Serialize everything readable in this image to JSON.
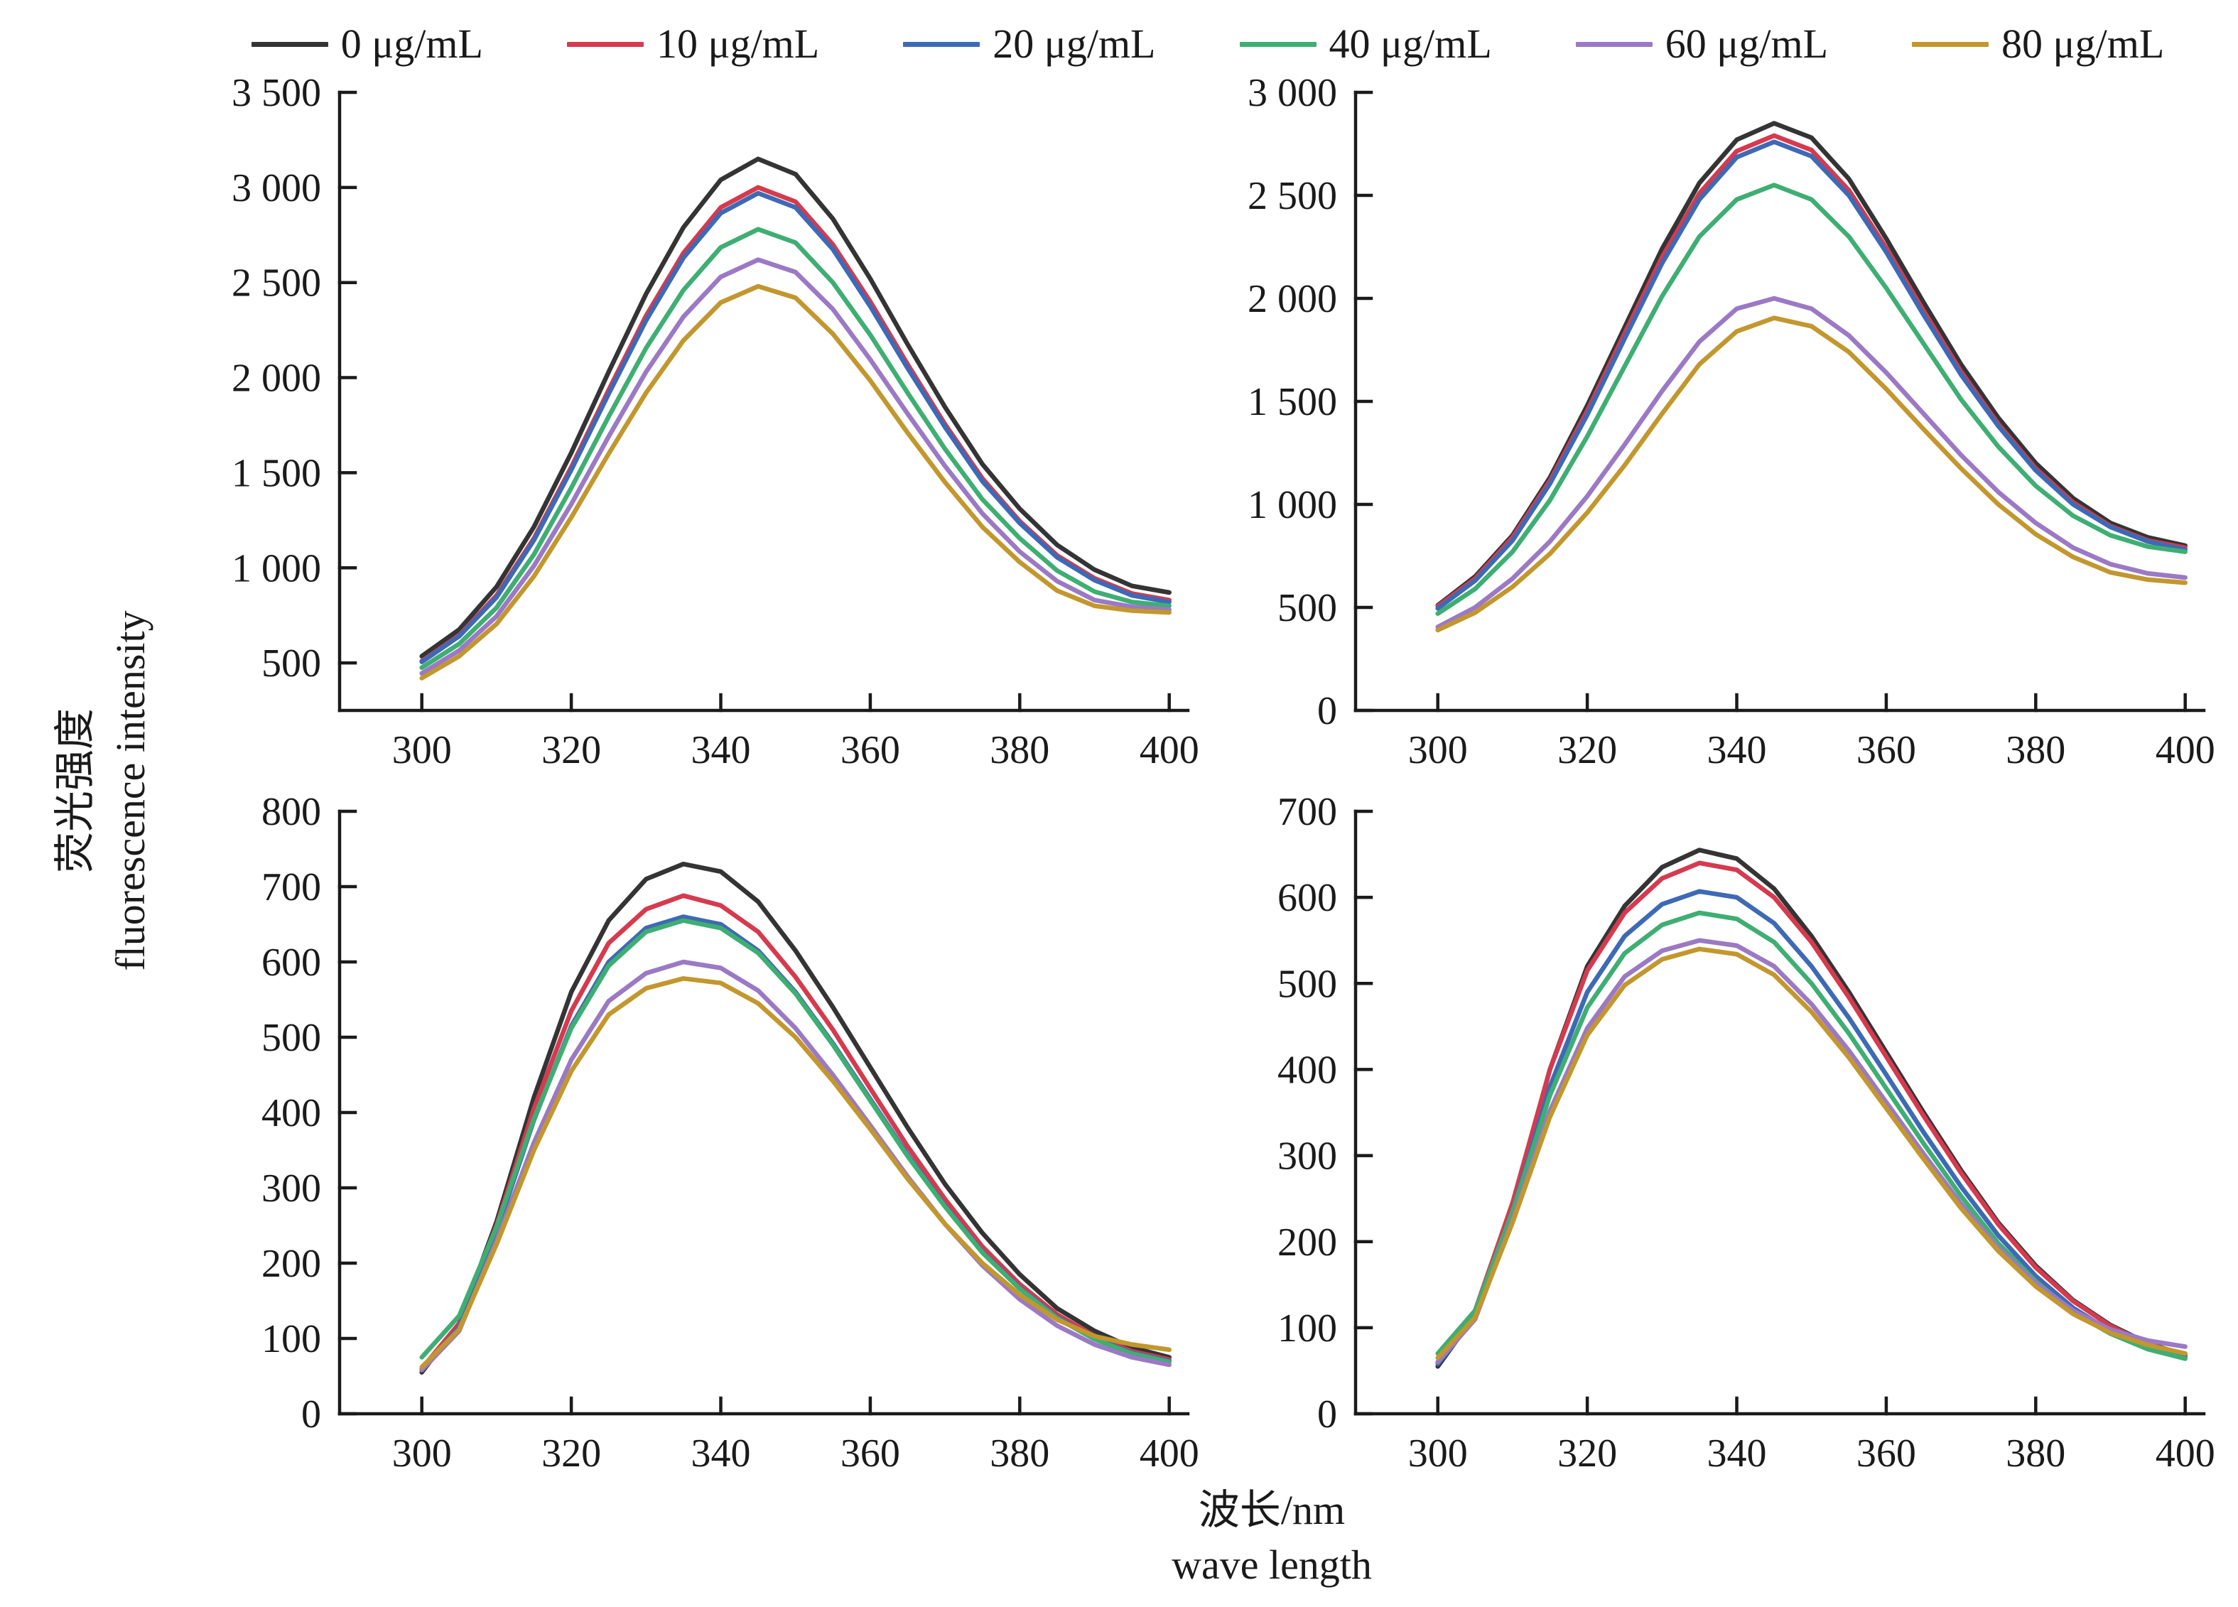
{
  "legend": {
    "items": [
      {
        "label": "0 μg/mL",
        "color": "#343434"
      },
      {
        "label": "10 μg/mL",
        "color": "#d53a4f"
      },
      {
        "label": "20 μg/mL",
        "color": "#3d6ab5"
      },
      {
        "label": "40 μg/mL",
        "color": "#3fae73"
      },
      {
        "label": "60 μg/mL",
        "color": "#9b79c4"
      },
      {
        "label": "80 μg/mL",
        "color": "#c2972e"
      }
    ]
  },
  "axes": {
    "y_label_zh": "荧光强度",
    "y_label_en": "fluorescence intensity",
    "x_label_zh": "波长/nm",
    "x_label_en": "wave length"
  },
  "chart_data": [
    {
      "type": "line",
      "position": "top-left",
      "xlabel": "wave length (nm)",
      "ylabel": "fluorescence intensity",
      "xlim": [
        289,
        402.5
      ],
      "ylim": [
        250,
        3500
      ],
      "xticks": [
        300,
        320,
        340,
        360,
        380,
        400
      ],
      "yticks": [
        500,
        1000,
        1500,
        2000,
        2500,
        3000,
        3500
      ],
      "x": [
        300,
        305,
        310,
        315,
        320,
        325,
        330,
        335,
        340,
        345,
        350,
        355,
        360,
        365,
        370,
        375,
        380,
        385,
        390,
        395,
        400
      ],
      "series": [
        {
          "name": "0 μg/mL",
          "color": "#343434",
          "values": [
            535,
            675,
            900,
            1215,
            1605,
            2030,
            2440,
            2790,
            3040,
            3150,
            3070,
            2835,
            2520,
            2175,
            1845,
            1545,
            1310,
            1120,
            990,
            905,
            870
          ]
        },
        {
          "name": "10 μg/mL",
          "color": "#d53a4f",
          "values": [
            510,
            645,
            855,
            1155,
            1530,
            1935,
            2325,
            2655,
            2895,
            3000,
            2925,
            2700,
            2400,
            2070,
            1755,
            1470,
            1245,
            1065,
            945,
            865,
            830
          ]
        },
        {
          "name": "20 μg/mL",
          "color": "#3d6ab5",
          "values": [
            505,
            640,
            845,
            1145,
            1515,
            1915,
            2300,
            2630,
            2865,
            2970,
            2895,
            2675,
            2375,
            2050,
            1740,
            1455,
            1235,
            1055,
            935,
            855,
            820
          ]
        },
        {
          "name": "40 μg/mL",
          "color": "#3fae73",
          "values": [
            475,
            600,
            790,
            1070,
            1420,
            1795,
            2155,
            2460,
            2685,
            2780,
            2710,
            2500,
            2225,
            1920,
            1625,
            1360,
            1155,
            985,
            875,
            820,
            800
          ]
        },
        {
          "name": "60 μg/mL",
          "color": "#9b79c4",
          "values": [
            445,
            565,
            745,
            1010,
            1335,
            1690,
            2030,
            2320,
            2530,
            2620,
            2555,
            2360,
            2095,
            1810,
            1535,
            1285,
            1085,
            930,
            830,
            795,
            780
          ]
        },
        {
          "name": "80 μg/mL",
          "color": "#c2972e",
          "values": [
            420,
            535,
            705,
            955,
            1265,
            1600,
            1920,
            2195,
            2395,
            2480,
            2420,
            2230,
            1985,
            1710,
            1450,
            1215,
            1030,
            880,
            800,
            775,
            765
          ]
        }
      ]
    },
    {
      "type": "line",
      "position": "top-right",
      "xlabel": "wave length (nm)",
      "ylabel": "fluorescence intensity",
      "xlim": [
        289,
        402.5
      ],
      "ylim": [
        0,
        3000
      ],
      "xticks": [
        300,
        320,
        340,
        360,
        380,
        400
      ],
      "yticks": [
        0,
        500,
        1000,
        1500,
        2000,
        2500,
        3000
      ],
      "x": [
        300,
        305,
        310,
        315,
        320,
        325,
        330,
        335,
        340,
        345,
        350,
        355,
        360,
        365,
        370,
        375,
        380,
        385,
        390,
        395,
        400
      ],
      "series": [
        {
          "name": "0 μg/mL",
          "color": "#343434",
          "values": [
            510,
            650,
            850,
            1130,
            1480,
            1860,
            2240,
            2560,
            2770,
            2850,
            2780,
            2580,
            2290,
            1980,
            1680,
            1420,
            1200,
            1030,
            910,
            840,
            800
          ]
        },
        {
          "name": "10 μg/mL",
          "color": "#d53a4f",
          "values": [
            505,
            640,
            840,
            1115,
            1455,
            1830,
            2200,
            2510,
            2715,
            2790,
            2720,
            2525,
            2245,
            1940,
            1645,
            1390,
            1175,
            1010,
            895,
            825,
            790
          ]
        },
        {
          "name": "20 μg/mL",
          "color": "#3d6ab5",
          "values": [
            495,
            630,
            825,
            1100,
            1435,
            1805,
            2170,
            2480,
            2685,
            2760,
            2690,
            2500,
            2225,
            1920,
            1630,
            1380,
            1165,
            1000,
            890,
            820,
            780
          ]
        },
        {
          "name": "40 μg/mL",
          "color": "#3fae73",
          "values": [
            470,
            590,
            770,
            1020,
            1330,
            1670,
            2010,
            2300,
            2480,
            2550,
            2480,
            2300,
            2050,
            1780,
            1510,
            1280,
            1090,
            945,
            850,
            795,
            770
          ]
        },
        {
          "name": "60 μg/mL",
          "color": "#9b79c4",
          "values": [
            405,
            500,
            640,
            820,
            1040,
            1290,
            1550,
            1790,
            1950,
            2000,
            1950,
            1820,
            1640,
            1440,
            1240,
            1060,
            910,
            790,
            710,
            665,
            645
          ]
        },
        {
          "name": "80 μg/mL",
          "color": "#c2972e",
          "values": [
            390,
            475,
            600,
            760,
            960,
            1190,
            1440,
            1680,
            1840,
            1905,
            1865,
            1740,
            1560,
            1365,
            1175,
            1000,
            855,
            745,
            670,
            635,
            620
          ]
        }
      ]
    },
    {
      "type": "line",
      "position": "bottom-left",
      "xlabel": "wave length (nm)",
      "ylabel": "fluorescence intensity",
      "xlim": [
        289,
        402.5
      ],
      "ylim": [
        0,
        800
      ],
      "xticks": [
        300,
        320,
        340,
        360,
        380,
        400
      ],
      "yticks": [
        0,
        100,
        200,
        300,
        400,
        500,
        600,
        700,
        800
      ],
      "x": [
        300,
        305,
        310,
        315,
        320,
        325,
        330,
        335,
        340,
        345,
        350,
        355,
        360,
        365,
        370,
        375,
        380,
        385,
        390,
        395,
        400
      ],
      "series": [
        {
          "name": "0 μg/mL",
          "color": "#343434",
          "values": [
            55,
            120,
            255,
            420,
            560,
            655,
            710,
            730,
            720,
            680,
            615,
            540,
            460,
            380,
            305,
            240,
            185,
            140,
            110,
            88,
            75
          ]
        },
        {
          "name": "10 μg/mL",
          "color": "#d53a4f",
          "values": [
            60,
            120,
            250,
            405,
            535,
            625,
            670,
            688,
            675,
            640,
            580,
            510,
            432,
            355,
            285,
            222,
            172,
            132,
            103,
            83,
            72
          ]
        },
        {
          "name": "20 μg/mL",
          "color": "#3d6ab5",
          "values": [
            58,
            115,
            242,
            390,
            515,
            600,
            645,
            660,
            650,
            615,
            560,
            492,
            418,
            344,
            276,
            215,
            167,
            128,
            100,
            81,
            70
          ]
        },
        {
          "name": "40 μg/mL",
          "color": "#3fae73",
          "values": [
            75,
            130,
            248,
            392,
            512,
            595,
            640,
            655,
            645,
            612,
            558,
            490,
            416,
            342,
            275,
            214,
            166,
            127,
            99,
            80,
            69
          ]
        },
        {
          "name": "60 μg/mL",
          "color": "#9b79c4",
          "values": [
            58,
            110,
            230,
            360,
            470,
            548,
            585,
            600,
            592,
            562,
            512,
            450,
            383,
            315,
            252,
            197,
            152,
            117,
            92,
            75,
            65
          ]
        },
        {
          "name": "80 μg/mL",
          "color": "#c2972e",
          "values": [
            62,
            112,
            225,
            350,
            455,
            530,
            565,
            578,
            572,
            545,
            500,
            442,
            378,
            312,
            252,
            200,
            158,
            125,
            103,
            92,
            85
          ]
        }
      ]
    },
    {
      "type": "line",
      "position": "bottom-right",
      "xlabel": "wave length (nm)",
      "ylabel": "fluorescence intensity",
      "xlim": [
        289,
        402.5
      ],
      "ylim": [
        0,
        700
      ],
      "xticks": [
        300,
        320,
        340,
        360,
        380,
        400
      ],
      "yticks": [
        0,
        100,
        200,
        300,
        400,
        500,
        600,
        700
      ],
      "x": [
        300,
        305,
        310,
        315,
        320,
        325,
        330,
        335,
        340,
        345,
        350,
        355,
        360,
        365,
        370,
        375,
        380,
        385,
        390,
        395,
        400
      ],
      "series": [
        {
          "name": "0 μg/mL",
          "color": "#343434",
          "values": [
            55,
            115,
            240,
            400,
            520,
            590,
            635,
            655,
            645,
            610,
            555,
            490,
            420,
            350,
            283,
            222,
            172,
            132,
            103,
            82,
            68
          ]
        },
        {
          "name": "10 μg/mL",
          "color": "#d53a4f",
          "values": [
            60,
            120,
            245,
            400,
            515,
            582,
            622,
            640,
            632,
            600,
            548,
            484,
            415,
            346,
            280,
            220,
            170,
            131,
            102,
            81,
            67
          ]
        },
        {
          "name": "20 μg/mL",
          "color": "#3d6ab5",
          "values": [
            58,
            112,
            235,
            380,
            490,
            555,
            592,
            607,
            600,
            570,
            520,
            460,
            394,
            327,
            264,
            207,
            160,
            123,
            96,
            77,
            65
          ]
        },
        {
          "name": "40 μg/mL",
          "color": "#3fae73",
          "values": [
            70,
            120,
            235,
            370,
            472,
            535,
            568,
            582,
            575,
            548,
            500,
            442,
            378,
            314,
            253,
            198,
            154,
            118,
            93,
            75,
            64
          ]
        },
        {
          "name": "60 μg/mL",
          "color": "#9b79c4",
          "values": [
            60,
            110,
            225,
            352,
            448,
            508,
            538,
            550,
            544,
            520,
            476,
            422,
            362,
            302,
            244,
            193,
            152,
            120,
            98,
            85,
            78
          ]
        },
        {
          "name": "80 μg/mL",
          "color": "#c2972e",
          "values": [
            65,
            112,
            222,
            345,
            440,
            498,
            528,
            540,
            534,
            510,
            467,
            414,
            355,
            296,
            239,
            189,
            148,
            116,
            94,
            80,
            70
          ]
        }
      ]
    }
  ]
}
